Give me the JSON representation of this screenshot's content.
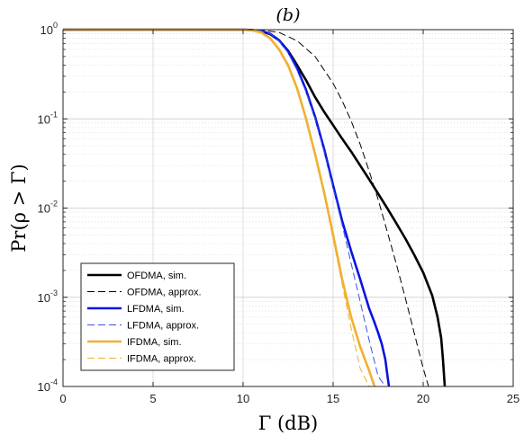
{
  "chart_data": {
    "type": "line",
    "title": "(b)",
    "xlabel": "Γ (dB)",
    "ylabel": "Pr(ρ > Γ)",
    "xlim": [
      0,
      25
    ],
    "ylim": [
      0.0001,
      1
    ],
    "yscale": "log",
    "grid": true,
    "minor_grid": true,
    "legend_position": "bottom-left",
    "x_ticks": [
      "0",
      "5",
      "10",
      "15",
      "20",
      "25"
    ],
    "y_ticks": [
      {
        "base": "10",
        "exp": "0",
        "value": 1
      },
      {
        "base": "10",
        "exp": "-1",
        "value": 0.1
      },
      {
        "base": "10",
        "exp": "-2",
        "value": 0.01
      },
      {
        "base": "10",
        "exp": "-3",
        "value": 0.001
      },
      {
        "base": "10",
        "exp": "-4",
        "value": 0.0001
      }
    ],
    "series": [
      {
        "name": "OFDMA, sim.",
        "color": "#000000",
        "style": "solid",
        "width": 2.6,
        "x": [
          0,
          9,
          10,
          10.5,
          11,
          11.5,
          12,
          12.5,
          13,
          13.5,
          14,
          14.5,
          15,
          15.5,
          16,
          16.5,
          17,
          17.5,
          18,
          18.5,
          19,
          19.5,
          20,
          20.5,
          20.8,
          21,
          21.1,
          21.2
        ],
        "y": [
          1,
          1,
          0.999,
          0.99,
          0.96,
          0.89,
          0.76,
          0.58,
          0.4,
          0.27,
          0.175,
          0.12,
          0.085,
          0.06,
          0.043,
          0.03,
          0.021,
          0.0145,
          0.01,
          0.0068,
          0.0046,
          0.003,
          0.0019,
          0.00105,
          0.0006,
          0.00035,
          0.0002,
          0.0001
        ]
      },
      {
        "name": "OFDMA, approx.",
        "color": "#000000",
        "style": "dashed",
        "width": 1,
        "x": [
          0,
          10,
          11,
          12,
          13,
          14,
          15,
          15.5,
          16,
          16.5,
          17,
          17.5,
          18,
          18.5,
          19,
          19.5,
          20,
          20.3,
          20.6
        ],
        "y": [
          1,
          0.999,
          0.99,
          0.93,
          0.75,
          0.5,
          0.25,
          0.16,
          0.095,
          0.052,
          0.026,
          0.0125,
          0.0055,
          0.0024,
          0.001,
          0.0004,
          0.00016,
          0.0001,
          0.0001
        ]
      },
      {
        "name": "LFDMA, sim.",
        "color": "#0a14e0",
        "style": "solid",
        "width": 2.6,
        "x": [
          0,
          10,
          11,
          11.5,
          12,
          12.5,
          13,
          13.5,
          14,
          14.5,
          15,
          15.5,
          16,
          16.5,
          17,
          17.3,
          17.5,
          17.7,
          17.9,
          18,
          18.1
        ],
        "y": [
          1,
          0.999,
          0.97,
          0.9,
          0.76,
          0.57,
          0.37,
          0.21,
          0.105,
          0.046,
          0.018,
          0.0072,
          0.0033,
          0.0016,
          0.00075,
          0.00052,
          0.0004,
          0.0003,
          0.0002,
          0.00014,
          0.0001
        ]
      },
      {
        "name": "LFDMA, approx.",
        "color": "#3a50e8",
        "style": "dashed",
        "width": 1,
        "x": [
          0,
          10,
          11,
          11.5,
          12,
          12.5,
          13,
          13.5,
          14,
          14.5,
          15,
          15.5,
          16,
          16.5,
          17,
          17.5,
          17.9
        ],
        "y": [
          1,
          0.999,
          0.97,
          0.9,
          0.75,
          0.55,
          0.35,
          0.2,
          0.1,
          0.043,
          0.017,
          0.0065,
          0.0024,
          0.0009,
          0.00033,
          0.00013,
          0.0001
        ]
      },
      {
        "name": "IFDMA, sim.",
        "color": "#f0b030",
        "style": "solid",
        "width": 2.6,
        "x": [
          0,
          10,
          10.5,
          11,
          11.5,
          12,
          12.5,
          13,
          13.5,
          14,
          14.5,
          15,
          15.5,
          16,
          16.5,
          17,
          17.3
        ],
        "y": [
          1,
          0.998,
          0.98,
          0.93,
          0.8,
          0.6,
          0.4,
          0.22,
          0.1,
          0.04,
          0.015,
          0.005,
          0.0016,
          0.0006,
          0.00028,
          0.00015,
          0.0001
        ]
      },
      {
        "name": "IFDMA, approx.",
        "color": "#f0b030",
        "style": "dashed",
        "width": 1,
        "x": [
          0,
          10,
          10.5,
          11,
          11.5,
          12,
          12.5,
          13,
          13.5,
          14,
          14.5,
          15,
          15.5,
          16,
          16.5,
          17
        ],
        "y": [
          1,
          0.998,
          0.98,
          0.93,
          0.79,
          0.58,
          0.38,
          0.21,
          0.095,
          0.038,
          0.014,
          0.0045,
          0.0014,
          0.00045,
          0.00016,
          0.0001
        ]
      }
    ]
  }
}
